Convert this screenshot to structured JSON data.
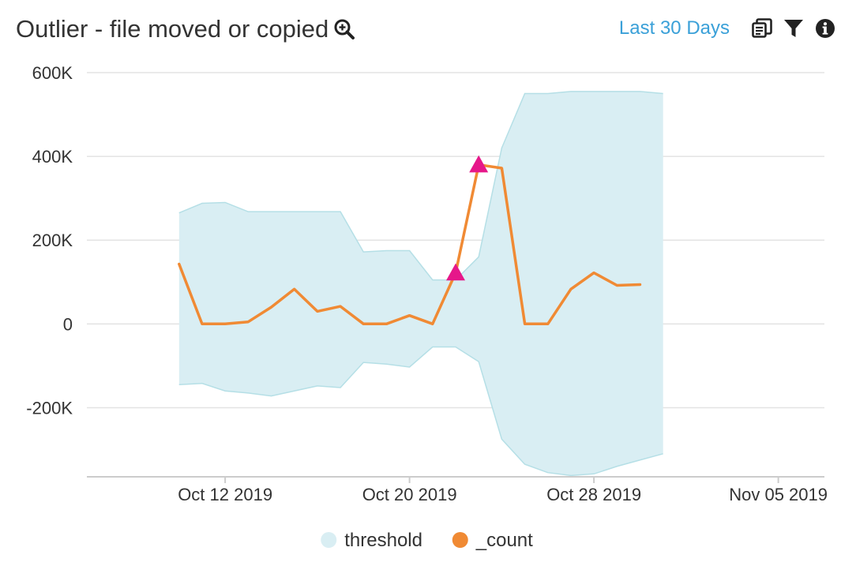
{
  "header": {
    "title": "Outlier - file moved or copied",
    "time_range_label": "Last 30 Days",
    "icons": {
      "zoom": "zoom-in-icon",
      "copy": "copy-icon",
      "filter": "filter-icon",
      "info": "info-icon"
    }
  },
  "chart_data": {
    "type": "area",
    "x_axis": {
      "ticks": [
        "2019-10-12",
        "2019-10-20",
        "2019-10-28",
        "2019-11-05"
      ],
      "tick_labels": [
        "Oct 12 2019",
        "Oct 20 2019",
        "Oct 28 2019",
        "Nov 05 2019"
      ],
      "range": [
        "2019-10-06",
        "2019-11-07"
      ]
    },
    "y_axis": {
      "ticks": [
        -200000,
        0,
        200000,
        400000,
        600000
      ],
      "tick_labels": [
        "-200K",
        "0",
        "200K",
        "400K",
        "600K"
      ],
      "range": [
        -365000,
        600000
      ]
    },
    "grid": true,
    "legend_position": "bottom-center",
    "x": [
      "2019-10-10",
      "2019-10-11",
      "2019-10-12",
      "2019-10-13",
      "2019-10-14",
      "2019-10-15",
      "2019-10-16",
      "2019-10-17",
      "2019-10-18",
      "2019-10-19",
      "2019-10-20",
      "2019-10-21",
      "2019-10-22",
      "2019-10-23",
      "2019-10-24",
      "2019-10-25",
      "2019-10-26",
      "2019-10-27",
      "2019-10-28",
      "2019-10-29",
      "2019-10-30",
      "2019-10-31"
    ],
    "series": [
      {
        "name": "threshold",
        "kind": "band",
        "color": "#d9eef3",
        "edge_color": "#b5dfe6",
        "upper": [
          265000,
          288000,
          290000,
          268000,
          268000,
          268000,
          268000,
          268000,
          172000,
          175000,
          175000,
          105000,
          105000,
          160000,
          420000,
          550000,
          550000,
          555000,
          555000,
          555000,
          555000,
          550000
        ],
        "lower": [
          -145000,
          -142000,
          -160000,
          -165000,
          -172000,
          -160000,
          -148000,
          -152000,
          -92000,
          -96000,
          -103000,
          -55000,
          -55000,
          -90000,
          -275000,
          -335000,
          -355000,
          -362000,
          -358000,
          -340000,
          -325000,
          -310000
        ]
      },
      {
        "name": "_count",
        "kind": "line",
        "color": "#f08a34",
        "values": [
          143000,
          0,
          0,
          5000,
          40000,
          83000,
          30000,
          42000,
          0,
          0,
          20000,
          0,
          122000,
          380000,
          372000,
          0,
          0,
          83000,
          122000,
          92000,
          94000,
          null
        ]
      }
    ],
    "outliers": {
      "color": "#e6178a",
      "points": [
        {
          "x": "2019-10-22",
          "y": 122000
        },
        {
          "x": "2019-10-23",
          "y": 380000
        }
      ]
    }
  }
}
